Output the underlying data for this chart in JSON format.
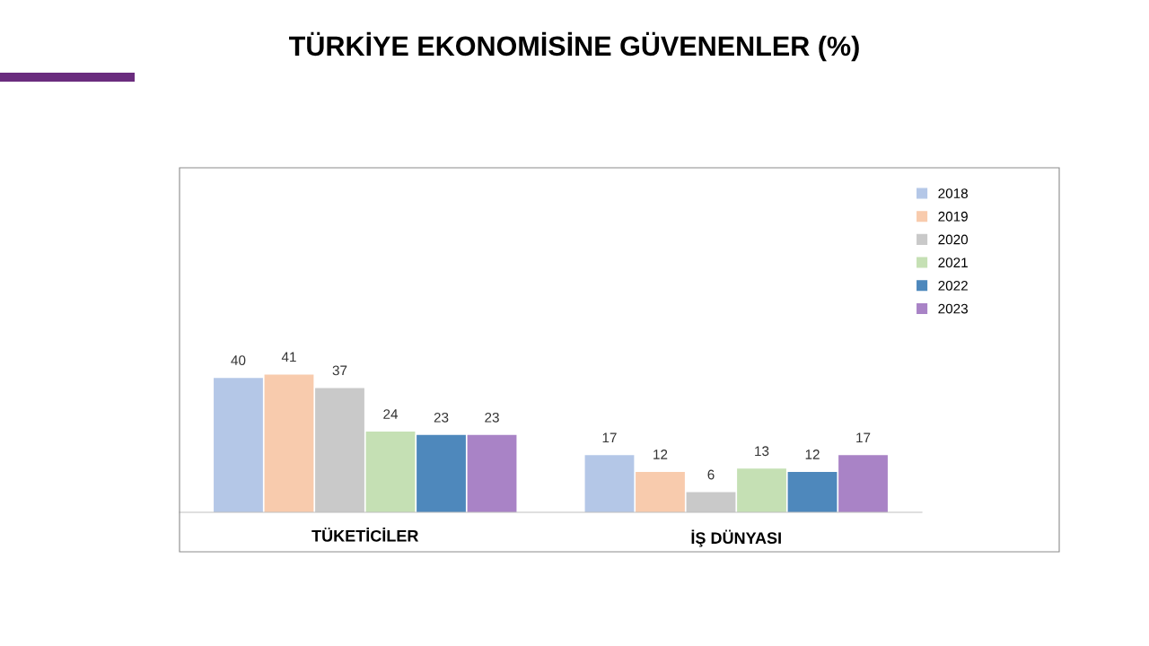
{
  "chart_data": {
    "type": "bar",
    "title": "TÜRKİYE EKONOMİSİNE GÜVENENLER (%)",
    "categories": [
      "TÜKETİCİLER",
      "İŞ DÜNYASI"
    ],
    "series": [
      {
        "name": "2018",
        "color": "#b4c7e7",
        "values": [
          40,
          17
        ]
      },
      {
        "name": "2019",
        "color": "#f8cbad",
        "values": [
          41,
          12
        ]
      },
      {
        "name": "2020",
        "color": "#c9c9c9",
        "values": [
          37,
          6
        ]
      },
      {
        "name": "2021",
        "color": "#c5e0b4",
        "values": [
          24,
          13
        ]
      },
      {
        "name": "2022",
        "color": "#4e88bc",
        "values": [
          23,
          12
        ]
      },
      {
        "name": "2023",
        "color": "#a983c6",
        "values": [
          23,
          17
        ]
      }
    ],
    "data_labels": true,
    "legend": "top right",
    "grid": false,
    "tick_labels": "x"
  }
}
